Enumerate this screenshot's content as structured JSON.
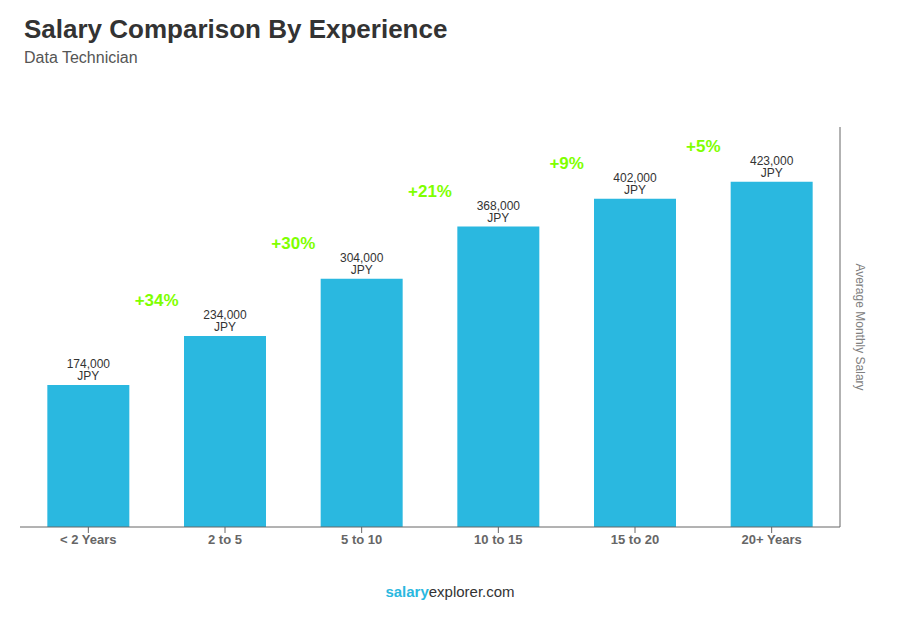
{
  "chart_data": {
    "type": "bar",
    "title": "Salary Comparison By Experience",
    "subtitle": "Data Technician",
    "categories": [
      "< 2 Years",
      "2 to 5",
      "5 to 10",
      "10 to 15",
      "15 to 20",
      "20+ Years"
    ],
    "values": [
      174000,
      234000,
      304000,
      368000,
      402000,
      423000
    ],
    "value_labels": [
      "174,000 JPY",
      "234,000 JPY",
      "304,000 JPY",
      "368,000 JPY",
      "402,000 JPY",
      "423,000 JPY"
    ],
    "annotations": [
      {
        "text": "+34%",
        "color": "#7fff00"
      },
      {
        "text": "+30%",
        "color": "#7fff00"
      },
      {
        "text": "+21%",
        "color": "#7fff00"
      },
      {
        "text": "+9%",
        "color": "#7fff00"
      },
      {
        "text": "+5%",
        "color": "#7fff00"
      }
    ],
    "color": "#2ab8e0",
    "ylabel": "Average Monthly Salary",
    "footer": [
      "salary",
      "explorer.com"
    ],
    "ylim": [
      0,
      490000
    ],
    "data_labels": true,
    "tick_labels": "x"
  }
}
